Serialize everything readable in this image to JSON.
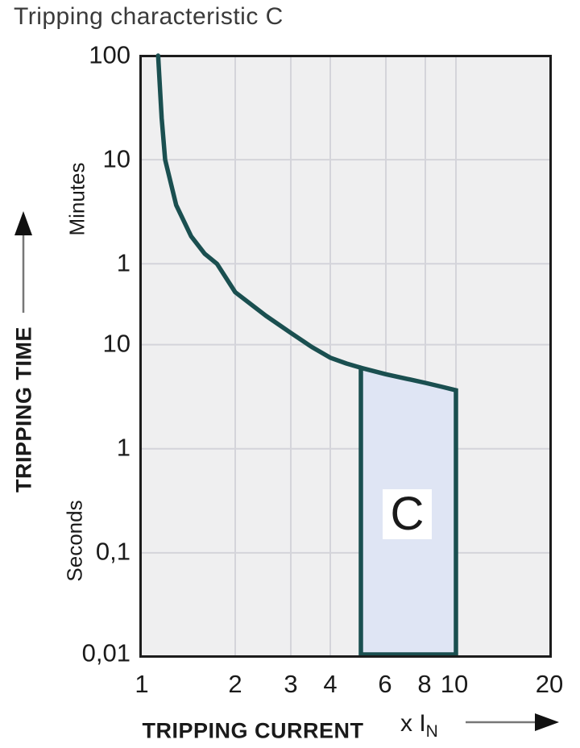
{
  "chart_data": {
    "type": "line",
    "title": "Tripping characteristic C",
    "xlabel": "TRIPPING CURRENT",
    "x_multiplier_label": "x I",
    "x_multiplier_sub": "N",
    "ylabel": "TRIPPING TIME",
    "x_scale": "log",
    "y_scale": "log",
    "x_range": [
      1,
      20
    ],
    "y_range_seconds": [
      0.01,
      6000
    ],
    "x_ticks": [
      "1",
      "2",
      "3",
      "4",
      "6",
      "8",
      "10",
      "20"
    ],
    "x_tick_values": [
      1,
      2,
      3,
      4,
      6,
      8,
      10,
      20
    ],
    "y_ticks": [
      {
        "label": "100",
        "seconds": 6000
      },
      {
        "label": "10",
        "seconds": 600
      },
      {
        "label": "1",
        "seconds": 60
      },
      {
        "label": "10",
        "seconds": 10
      },
      {
        "label": "1",
        "seconds": 1
      },
      {
        "label": "0,1",
        "seconds": 0.1
      },
      {
        "label": "0,01",
        "seconds": 0.01
      }
    ],
    "y_units": [
      "Minutes",
      "Seconds"
    ],
    "grid_x_values": [
      2,
      3,
      4,
      6,
      8,
      10
    ],
    "grid_y_seconds": [
      600,
      60,
      10,
      1,
      0.1
    ],
    "series": [
      {
        "name": "thermal-trip-curve",
        "points": [
          [
            1.14,
            6000
          ],
          [
            1.17,
            1500
          ],
          [
            1.2,
            600
          ],
          [
            1.3,
            220
          ],
          [
            1.45,
            110
          ],
          [
            1.6,
            75
          ],
          [
            1.75,
            60
          ],
          [
            2,
            32
          ],
          [
            2.5,
            19
          ],
          [
            3,
            13
          ],
          [
            3.5,
            9.5
          ],
          [
            4,
            7.5
          ],
          [
            4.5,
            6.6
          ],
          [
            5,
            6
          ]
        ]
      }
    ],
    "region": {
      "label": "C",
      "x_range": [
        5,
        10
      ],
      "top_points": [
        [
          5,
          6
        ],
        [
          6,
          5.2
        ],
        [
          7,
          4.7
        ],
        [
          8,
          4.3
        ],
        [
          9,
          3.95
        ],
        [
          10,
          3.65
        ]
      ],
      "bottom_seconds": 0.01
    },
    "colors": {
      "curve": "#1a4f50",
      "region_fill": "#dfe5f4",
      "plot_bg": "#efeff0",
      "grid": "#d4d4da",
      "border": "#1c1c1c",
      "arrow_line": "#777777",
      "arrow_head": "#111111"
    }
  }
}
